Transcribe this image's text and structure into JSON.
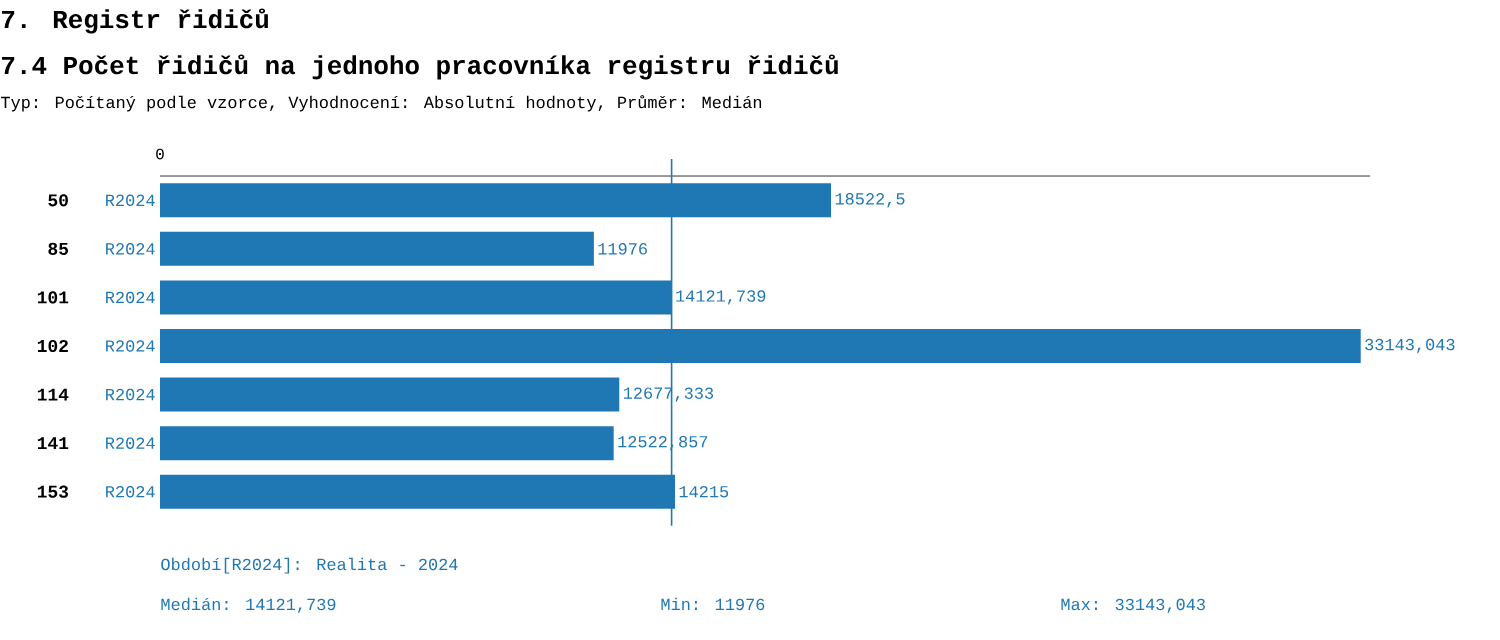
{
  "chart_data": {
    "type": "bar",
    "orientation": "horizontal",
    "title": "7. Registr řidičů",
    "subtitle": "7.4 Počet řidičů na jednoho pracovníka registru řidičů",
    "annotations": [
      "0",
      "Typ: Počítaný podle vzorce, Vyhodnocení: Absolutní hodnoty, Průměr: Medián",
      "Období[R2024]: Realita - 2024",
      "Medián: 14121,739",
      "Min: 11976",
      "Max: 33143,043"
    ],
    "categories": [
      "50",
      "85",
      "101",
      "102",
      "114",
      "141",
      "153"
    ],
    "series": [
      {
        "name": "R2024",
        "color": "#1f77b4",
        "values": [
          18522.5,
          11976,
          14121.739,
          33143.043,
          12677.333,
          12522.857,
          14215
        ],
        "value_labels": [
          "18522,5",
          "11976",
          "14121,739",
          "33143,043",
          "12677,333",
          "12522,857",
          "14215"
        ]
      }
    ],
    "xlim": [
      0,
      33400
    ],
    "ref_lines": [
      {
        "axis": "x",
        "value": 14121.739,
        "color": "#1f77b4"
      }
    ],
    "grid": false,
    "legend": false
  }
}
